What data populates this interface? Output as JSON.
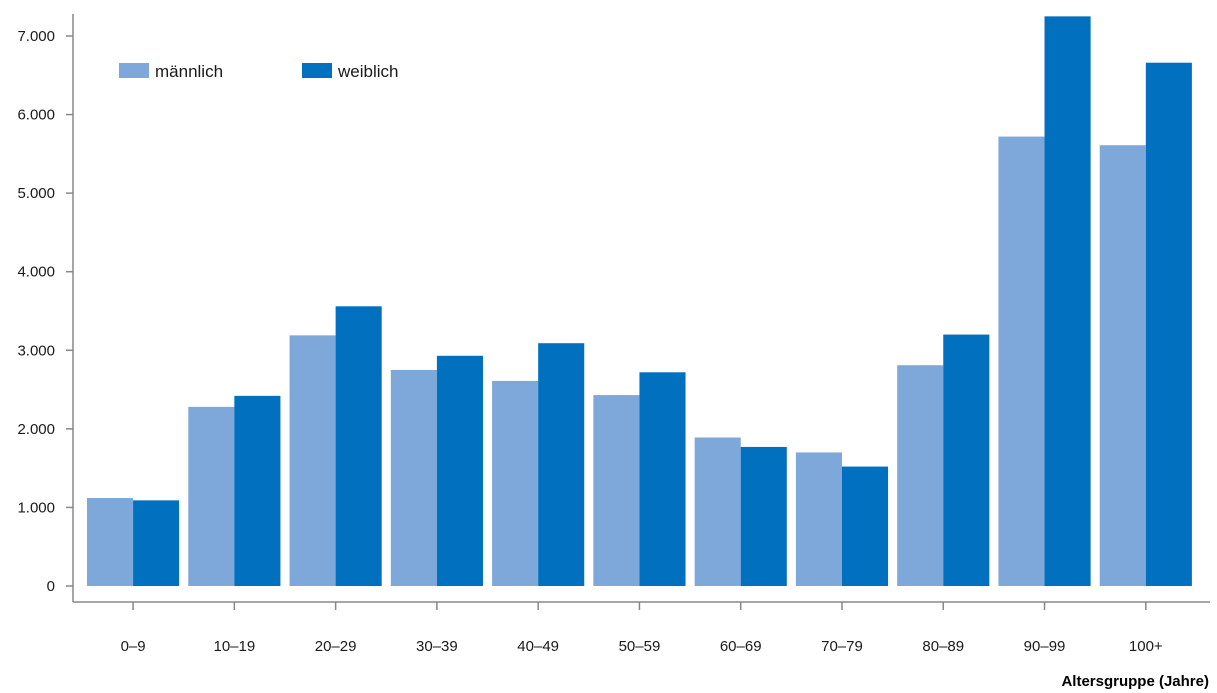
{
  "chart_data": {
    "type": "bar",
    "title": "",
    "xlabel": "Altersgruppe (Jahre)",
    "ylabel": "",
    "categories": [
      "0–9",
      "10–19",
      "20–29",
      "30–39",
      "40–49",
      "50–59",
      "60–69",
      "70–79",
      "80–89",
      "90–99",
      "100+"
    ],
    "series": [
      {
        "name": "männlich",
        "color": "#7fa8da",
        "values": [
          1120,
          2280,
          3190,
          2750,
          2610,
          2430,
          1890,
          1700,
          2810,
          5720,
          5610
        ]
      },
      {
        "name": "weiblich",
        "color": "#0070bf",
        "values": [
          1090,
          2420,
          3560,
          2930,
          3090,
          2720,
          1770,
          1520,
          3200,
          7250,
          6660
        ]
      }
    ],
    "y_ticks": [
      "0",
      "1.000",
      "2.000",
      "3.000",
      "4.000",
      "5.000",
      "6.000",
      "7.000"
    ],
    "y_tick_values": [
      0,
      1000,
      2000,
      3000,
      4000,
      5000,
      6000,
      7000
    ],
    "ylim": [
      0,
      7300
    ],
    "grid": false,
    "legend_position": "top-left",
    "axis_color": "#888888"
  }
}
